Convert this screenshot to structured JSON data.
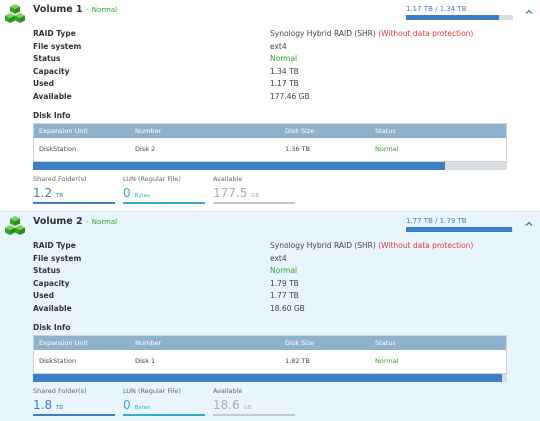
{
  "colors": {
    "accent": "#3b7fc4",
    "status_green": "#2ea02e",
    "warning_red": "#e0393e",
    "table_header": "#8fb2cc"
  },
  "volumes": [
    {
      "name": "Volume 1",
      "separator": "-",
      "status": "Normal",
      "usage_text": "1.17 TB / 1.34 TB",
      "usage_fraction": 0.87,
      "props": [
        {
          "label": "RAID Type",
          "value": "Synology Hybrid RAID (SHR)",
          "note": "(Without data protection)"
        },
        {
          "label": "File system",
          "value": "ext4"
        },
        {
          "label": "Status",
          "value": "Normal"
        },
        {
          "label": "Capacity",
          "value": "1.34 TB"
        },
        {
          "label": "Used",
          "value": "1.17 TB"
        },
        {
          "label": "Available",
          "value": "177.46 GB"
        }
      ],
      "disk_info_label": "Disk Info",
      "table_headers": [
        "Expansion Unit",
        "Number",
        "Disk Size",
        "Status"
      ],
      "disks": [
        {
          "unit": "DiskStation",
          "number": "Disk 2",
          "size": "1.36 TB",
          "status": "Normal"
        }
      ],
      "storage_fraction": 0.87,
      "stats": [
        {
          "label": "Shared Folder(s)",
          "value": "1.2",
          "unit": "TB"
        },
        {
          "label": "LUN (Regular File)",
          "value": "0",
          "unit": "Bytes"
        },
        {
          "label": "Available",
          "value": "177.5",
          "unit": "GB"
        }
      ]
    },
    {
      "name": "Volume 2",
      "separator": "-",
      "status": "Normal",
      "usage_text": "1.77 TB / 1.79 TB",
      "usage_fraction": 0.99,
      "props": [
        {
          "label": "RAID Type",
          "value": "Synology Hybrid RAID (SHR)",
          "note": "(Without data protection)"
        },
        {
          "label": "File system",
          "value": "ext4"
        },
        {
          "label": "Status",
          "value": "Normal"
        },
        {
          "label": "Capacity",
          "value": "1.79 TB"
        },
        {
          "label": "Used",
          "value": "1.77 TB"
        },
        {
          "label": "Available",
          "value": "18.60 GB"
        }
      ],
      "disk_info_label": "Disk Info",
      "table_headers": [
        "Expansion Unit",
        "Number",
        "Disk Size",
        "Status"
      ],
      "disks": [
        {
          "unit": "DiskStation",
          "number": "Disk 1",
          "size": "1.82 TB",
          "status": "Normal"
        }
      ],
      "storage_fraction": 0.99,
      "stats": [
        {
          "label": "Shared Folder(s)",
          "value": "1.8",
          "unit": "TB"
        },
        {
          "label": "LUN (Regular File)",
          "value": "0",
          "unit": "Bytes"
        },
        {
          "label": "Available",
          "value": "18.6",
          "unit": "GB"
        }
      ]
    }
  ]
}
